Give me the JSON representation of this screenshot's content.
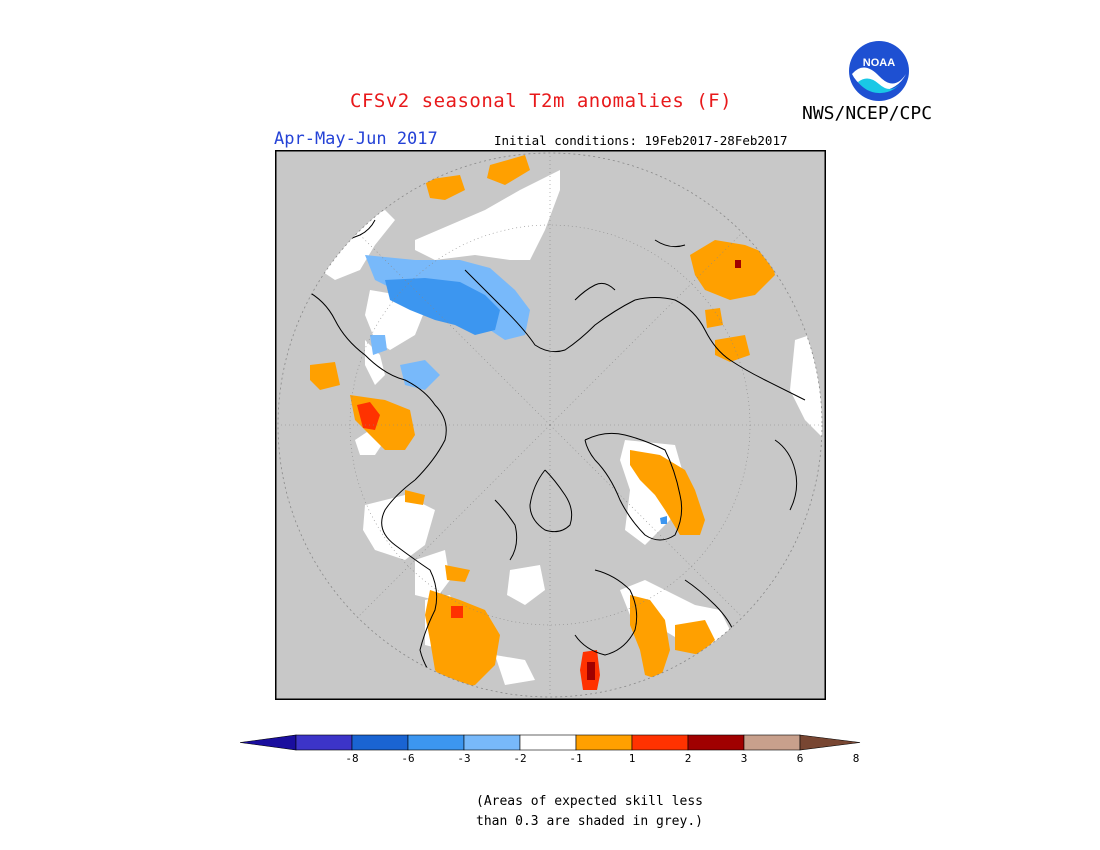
{
  "header": {
    "title": "CFSv2 seasonal T2m anomalies (F)",
    "season": "Apr-May-Jun 2017",
    "initial_conditions": "Initial conditions: 19Feb2017-28Feb2017",
    "agency": "NWS/NCEP/CPC",
    "logo_text": "NOAA"
  },
  "legend": {
    "labels": [
      "-8",
      "-6",
      "-3",
      "-2",
      "-1",
      "1",
      "2",
      "3",
      "6",
      "8"
    ],
    "colors": [
      "#1a0e9e",
      "#3c34c8",
      "#1a64d2",
      "#3c96f0",
      "#78b9fa",
      "#ffffff",
      "#ffa000",
      "#ff3200",
      "#a00000",
      "#c8a08c",
      "#784632"
    ]
  },
  "note": {
    "line1": "(Areas of expected skill less",
    "line2": "than 0.3 are shaded in grey.)"
  },
  "map": {
    "projection": "north polar stereographic",
    "colors": {
      "no_skill": "#c8c8c8",
      "near_normal": "#ffffff",
      "cold_1_2": "#78b9fa",
      "cold_2_3": "#3c96f0",
      "warm_1_2": "#ffa000",
      "warm_2_3": "#ff3200",
      "warm_3_6": "#a00000"
    }
  }
}
